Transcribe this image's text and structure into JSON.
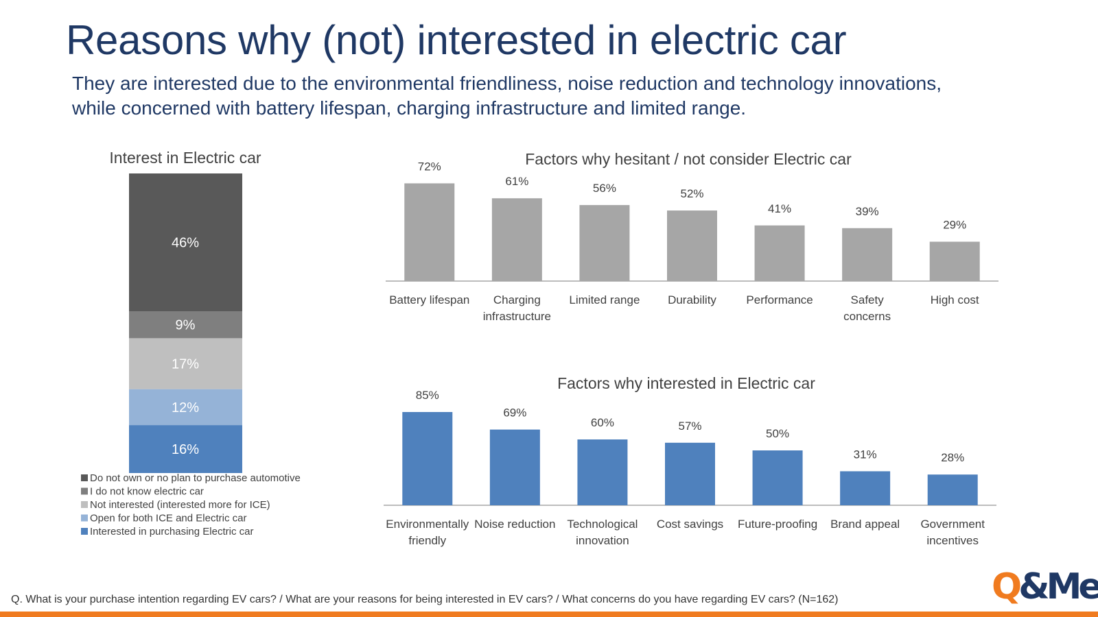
{
  "title": "Reasons why (not) interested in electric car",
  "subtitle": {
    "line1": "They are interested due to the environmental friendliness, noise reduction and technology innovations,",
    "line2": "while concerned with battery lifespan, charging infrastructure and limited range."
  },
  "footer": "Q. What is your purchase intention regarding EV cars? / What are your reasons for being interested in EV cars? / What concerns do you have regarding EV cars? (N=162)",
  "logo": {
    "q": "Q",
    "rest": "&Me"
  },
  "chart_data": [
    {
      "type": "bar",
      "stacked": true,
      "title": "Interest in Electric car",
      "segments": [
        {
          "label": "Interested in purchasing Electric car",
          "value": 16,
          "color": "#4f81bd"
        },
        {
          "label": "Open for both ICE and Electric car",
          "value": 12,
          "color": "#95b3d7"
        },
        {
          "label": "Not interested (interested more for ICE)",
          "value": 17,
          "color": "#bfbfbf"
        },
        {
          "label": "I do not know electric car",
          "value": 9,
          "color": "#7f7f7f"
        },
        {
          "label": "Do not own or no plan to purchase automotive",
          "value": 46,
          "color": "#595959"
        }
      ],
      "legend_order": [
        "Do not own or no plan to purchase automotive",
        "I do not know electric car",
        "Not interested (interested more for ICE)",
        "Open for both ICE and Electric car",
        "Interested in purchasing Electric car"
      ],
      "legend": "bottom-left"
    },
    {
      "type": "bar",
      "title": "Factors why hesitant / not consider Electric car",
      "categories": [
        "Battery lifespan",
        "Charging infrastructure",
        "Limited range",
        "Durability",
        "Performance",
        "Safety concerns",
        "High cost"
      ],
      "category_lines": [
        [
          "Battery lifespan"
        ],
        [
          "Charging",
          "infrastructure"
        ],
        [
          "Limited range"
        ],
        [
          "Durability"
        ],
        [
          "Performance"
        ],
        [
          "Safety",
          "concerns"
        ],
        [
          "High cost"
        ]
      ],
      "values": [
        72,
        61,
        56,
        52,
        41,
        39,
        29
      ],
      "value_labels": [
        "72%",
        "61%",
        "56%",
        "52%",
        "41%",
        "39%",
        "29%"
      ],
      "color": "#a6a6a6",
      "ylim": [
        0,
        100
      ]
    },
    {
      "type": "bar",
      "title": "Factors why interested in Electric car",
      "categories": [
        "Environmentally friendly",
        "Noise reduction",
        "Technological innovation",
        "Cost savings",
        "Future-proofing",
        "Brand appeal",
        "Government incentives"
      ],
      "category_lines": [
        [
          "Environmentally",
          "friendly"
        ],
        [
          "Noise reduction"
        ],
        [
          "Technological",
          "innovation"
        ],
        [
          "Cost savings"
        ],
        [
          "Future-proofing"
        ],
        [
          "Brand appeal"
        ],
        [
          "Government",
          "incentives"
        ]
      ],
      "values": [
        85,
        69,
        60,
        57,
        50,
        31,
        28
      ],
      "value_labels": [
        "85%",
        "69%",
        "60%",
        "57%",
        "50%",
        "31%",
        "28%"
      ],
      "color": "#4f81bd",
      "ylim": [
        0,
        100
      ]
    }
  ]
}
